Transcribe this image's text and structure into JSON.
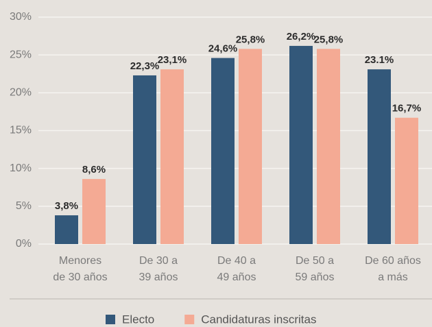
{
  "chart_data": {
    "type": "bar",
    "categories": [
      [
        "Menores",
        "de 30 años"
      ],
      [
        "De 30 a",
        "39 años"
      ],
      [
        "De 40 a",
        "49 años"
      ],
      [
        "De 50 a",
        "59 años"
      ],
      [
        "De 60 años",
        "a más"
      ]
    ],
    "series": [
      {
        "name": "Electo",
        "color": "#33587a",
        "values": [
          3.8,
          22.3,
          24.6,
          26.2,
          23.1
        ],
        "value_labels": [
          "3,8%",
          "22,3%",
          "24,6%",
          "26,2%",
          "23.1%"
        ]
      },
      {
        "name": "Candidaturas inscritas",
        "color": "#f4aa94",
        "values": [
          8.6,
          23.1,
          25.8,
          25.8,
          16.7
        ],
        "value_labels": [
          "8,6%",
          "23,1%",
          "25,8%",
          "25,8%",
          "16,7%"
        ]
      }
    ],
    "ylim": [
      0,
      30
    ],
    "yticks": [
      {
        "value": 0,
        "label": "0%"
      },
      {
        "value": 5,
        "label": "5%"
      },
      {
        "value": 10,
        "label": "10%"
      },
      {
        "value": 15,
        "label": "15%"
      },
      {
        "value": 20,
        "label": "20%"
      },
      {
        "value": 25,
        "label": "25%"
      },
      {
        "value": 30,
        "label": "30%"
      }
    ],
    "grid": true,
    "legend": "bottom"
  }
}
